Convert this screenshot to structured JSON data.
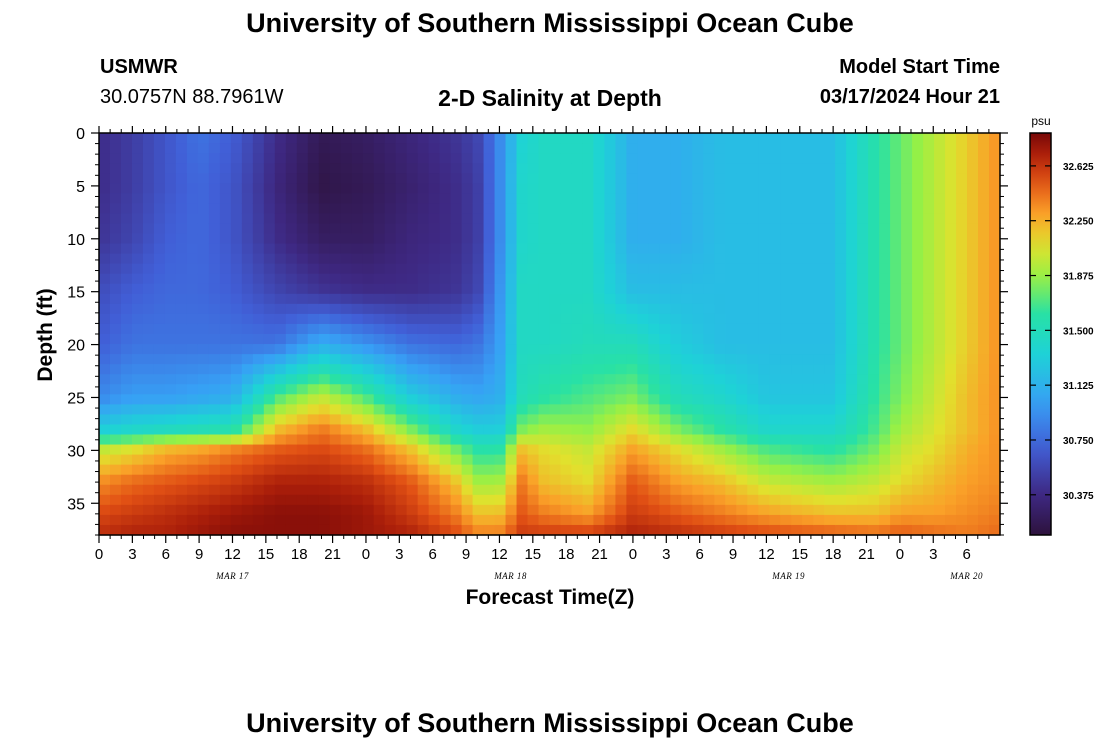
{
  "header": {
    "title": "University of Southern Mississippi Ocean Cube",
    "station_id": "USMWR",
    "station_coords": "30.0757N  88.7961W",
    "plot_title": "2-D Salinity at Depth",
    "model_start_label": "Model Start Time",
    "model_start_value": "03/17/2024 Hour 21"
  },
  "footer": {
    "title": "University of Southern Mississippi Ocean Cube"
  },
  "chart_data": {
    "type": "heatmap",
    "title": "2-D Salinity at Depth",
    "xlabel": "Forecast Time(Z)",
    "ylabel": "Depth (ft)",
    "colorbar_unit": "psu",
    "x_hours_range": [
      0,
      81
    ],
    "x_tick_labels": [
      "0",
      "3",
      "6",
      "9",
      "12",
      "15",
      "18",
      "21",
      "0",
      "3",
      "6",
      "9",
      "12",
      "15",
      "18",
      "21",
      "0",
      "3",
      "6",
      "9",
      "12",
      "15",
      "18",
      "21",
      "0",
      "3",
      "6"
    ],
    "date_labels": [
      {
        "label": "MAR 17",
        "hour": 12
      },
      {
        "label": "MAR 18",
        "hour": 37
      },
      {
        "label": "MAR 19",
        "hour": 62
      },
      {
        "label": "MAR 20",
        "hour": 78
      }
    ],
    "y_ticks": [
      0,
      5,
      10,
      15,
      20,
      25,
      30,
      35
    ],
    "ylim": [
      38,
      0
    ],
    "colorbar": {
      "min": 30.1,
      "max": 32.85,
      "ticks": [
        "30.375",
        "30.750",
        "31.125",
        "31.500",
        "31.875",
        "32.250",
        "32.625"
      ]
    },
    "salinity_profiles": {
      "depths_ft": [
        0,
        5,
        10,
        15,
        20,
        25,
        28,
        30,
        33,
        36,
        38
      ],
      "times_hours": [
        0,
        3,
        6,
        9,
        12,
        16,
        20,
        24,
        28,
        32,
        34,
        36,
        38,
        40,
        44,
        48,
        52,
        56,
        60,
        66,
        70,
        72,
        75,
        78,
        81
      ],
      "values_psu": [
        [
          30.4,
          30.4,
          30.45,
          30.6,
          30.7,
          30.9,
          31.3,
          32.0,
          32.35,
          32.55,
          32.65
        ],
        [
          30.5,
          30.5,
          30.55,
          30.7,
          30.8,
          31.0,
          31.4,
          32.1,
          32.45,
          32.6,
          32.7
        ],
        [
          30.65,
          30.65,
          30.7,
          30.75,
          30.8,
          31.0,
          31.45,
          32.25,
          32.5,
          32.65,
          32.7
        ],
        [
          30.8,
          30.75,
          30.75,
          30.75,
          30.8,
          31.05,
          31.5,
          32.3,
          32.55,
          32.7,
          32.75
        ],
        [
          30.7,
          30.65,
          30.65,
          30.7,
          30.8,
          31.1,
          31.55,
          32.4,
          32.6,
          32.75,
          32.8
        ],
        [
          30.4,
          30.35,
          30.4,
          30.55,
          30.8,
          31.7,
          32.2,
          32.5,
          32.7,
          32.8,
          32.8
        ],
        [
          30.2,
          30.15,
          30.25,
          30.45,
          31.1,
          32.0,
          32.4,
          32.55,
          32.7,
          32.8,
          32.8
        ],
        [
          30.25,
          30.2,
          30.25,
          30.4,
          30.95,
          31.7,
          32.2,
          32.45,
          32.65,
          32.75,
          32.75
        ],
        [
          30.35,
          30.3,
          30.35,
          30.4,
          30.8,
          31.3,
          31.8,
          32.2,
          32.5,
          32.6,
          32.7
        ],
        [
          30.45,
          30.4,
          30.4,
          30.45,
          30.75,
          31.1,
          31.4,
          31.8,
          32.2,
          32.4,
          32.55
        ],
        [
          30.55,
          30.5,
          30.5,
          30.55,
          30.8,
          31.05,
          31.3,
          31.6,
          31.9,
          32.2,
          32.4
        ],
        [
          30.9,
          30.9,
          30.9,
          30.95,
          31.0,
          31.1,
          31.3,
          31.6,
          31.9,
          32.2,
          32.4
        ],
        [
          31.35,
          31.4,
          31.4,
          31.45,
          31.45,
          31.5,
          31.8,
          32.2,
          32.4,
          32.5,
          32.6
        ],
        [
          31.45,
          31.45,
          31.45,
          31.45,
          31.45,
          31.6,
          31.9,
          32.1,
          32.2,
          32.4,
          32.6
        ],
        [
          31.45,
          31.45,
          31.45,
          31.45,
          31.5,
          31.7,
          31.85,
          32.0,
          32.1,
          32.3,
          32.6
        ],
        [
          31.1,
          31.1,
          31.1,
          31.2,
          31.5,
          31.8,
          32.1,
          32.3,
          32.5,
          32.6,
          32.7
        ],
        [
          31.1,
          31.1,
          31.1,
          31.2,
          31.3,
          31.5,
          31.8,
          32.1,
          32.3,
          32.5,
          32.65
        ],
        [
          31.2,
          31.2,
          31.2,
          31.2,
          31.2,
          31.4,
          31.6,
          31.9,
          32.2,
          32.4,
          32.6
        ],
        [
          31.2,
          31.2,
          31.2,
          31.2,
          31.2,
          31.25,
          31.4,
          31.7,
          32.0,
          32.3,
          32.55
        ],
        [
          31.2,
          31.2,
          31.2,
          31.2,
          31.2,
          31.25,
          31.4,
          31.6,
          31.9,
          32.2,
          32.5
        ],
        [
          31.6,
          31.6,
          31.6,
          31.6,
          31.6,
          31.65,
          31.7,
          31.8,
          32.0,
          32.2,
          32.45
        ],
        [
          31.75,
          31.75,
          31.75,
          31.75,
          31.75,
          31.8,
          31.9,
          32.0,
          32.1,
          32.3,
          32.5
        ],
        [
          31.95,
          31.95,
          31.95,
          31.95,
          31.95,
          32.0,
          32.05,
          32.1,
          32.2,
          32.3,
          32.45
        ],
        [
          32.15,
          32.15,
          32.15,
          32.15,
          32.15,
          32.2,
          32.2,
          32.25,
          32.3,
          32.35,
          32.4
        ],
        [
          32.35,
          32.35,
          32.35,
          32.35,
          32.35,
          32.35,
          32.35,
          32.35,
          32.35,
          32.4,
          32.45
        ]
      ]
    }
  }
}
